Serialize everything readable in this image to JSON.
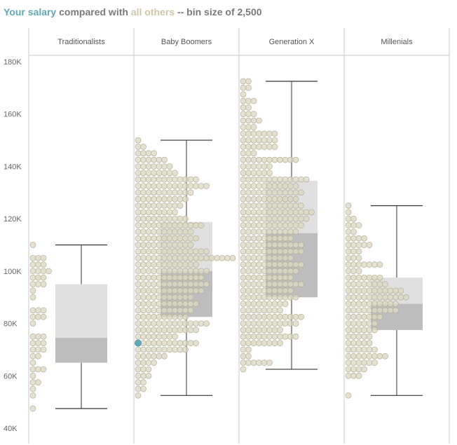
{
  "title": {
    "part1": "Your salary",
    "part2": " compared with ",
    "part3": "all others",
    "part4": " -- bin size of 2,500"
  },
  "colors": {
    "you": "#5fa8b8",
    "others": "#cfc6a8",
    "dot_fill": "#dcd8c4",
    "dot_stroke": "#b3ae97",
    "box_upper": "#e0e0e0",
    "box_lower": "#bdbdbd",
    "whisker": "#333333",
    "grid": "#c8c8c8"
  },
  "chart_data": {
    "type": "boxplot with binned dot strips",
    "bin_size": 2500,
    "y_axis": {
      "ticks": [
        40000,
        60000,
        80000,
        100000,
        120000,
        140000,
        160000,
        180000
      ],
      "tick_labels": [
        "40K",
        "60K",
        "80K",
        "100K",
        "120K",
        "140K",
        "160K",
        "180K"
      ],
      "ylim": [
        40000,
        180000
      ]
    },
    "your_salary": 72500,
    "your_group": "Baby Boomers",
    "groups": [
      {
        "name": "Traditionalists",
        "box": {
          "min": 47500,
          "q1": 65000,
          "median": 74500,
          "q3": 95000,
          "max": 110000
        },
        "bins": [
          {
            "salary": 47500,
            "count": 1
          },
          {
            "salary": 52500,
            "count": 1
          },
          {
            "salary": 55000,
            "count": 1
          },
          {
            "salary": 57500,
            "count": 2
          },
          {
            "salary": 60000,
            "count": 1
          },
          {
            "salary": 62500,
            "count": 3
          },
          {
            "salary": 65000,
            "count": 1
          },
          {
            "salary": 67500,
            "count": 2
          },
          {
            "salary": 70000,
            "count": 3
          },
          {
            "salary": 72500,
            "count": 3
          },
          {
            "salary": 75000,
            "count": 3
          },
          {
            "salary": 80000,
            "count": 1
          },
          {
            "salary": 82500,
            "count": 3
          },
          {
            "salary": 85000,
            "count": 3
          },
          {
            "salary": 90000,
            "count": 1
          },
          {
            "salary": 92500,
            "count": 1
          },
          {
            "salary": 95000,
            "count": 3
          },
          {
            "salary": 97500,
            "count": 3
          },
          {
            "salary": 100000,
            "count": 4
          },
          {
            "salary": 102500,
            "count": 3
          },
          {
            "salary": 105000,
            "count": 3
          },
          {
            "salary": 110000,
            "count": 1
          }
        ]
      },
      {
        "name": "Baby Boomers",
        "box": {
          "min": 52500,
          "q1": 82500,
          "median": 100000,
          "q3": 118750,
          "max": 150000
        },
        "bins": [
          {
            "salary": 52500,
            "count": 1
          },
          {
            "salary": 55000,
            "count": 2
          },
          {
            "salary": 57500,
            "count": 2
          },
          {
            "salary": 60000,
            "count": 3
          },
          {
            "salary": 62500,
            "count": 3
          },
          {
            "salary": 65000,
            "count": 4
          },
          {
            "salary": 67500,
            "count": 6
          },
          {
            "salary": 70000,
            "count": 10
          },
          {
            "salary": 72500,
            "count": 12
          },
          {
            "salary": 75000,
            "count": 8
          },
          {
            "salary": 77500,
            "count": 12
          },
          {
            "salary": 80000,
            "count": 14
          },
          {
            "salary": 82500,
            "count": 10
          },
          {
            "salary": 85000,
            "count": 11
          },
          {
            "salary": 87500,
            "count": 12
          },
          {
            "salary": 90000,
            "count": 11
          },
          {
            "salary": 92500,
            "count": 13
          },
          {
            "salary": 95000,
            "count": 14
          },
          {
            "salary": 97500,
            "count": 13
          },
          {
            "salary": 100000,
            "count": 14
          },
          {
            "salary": 102500,
            "count": 12
          },
          {
            "salary": 105000,
            "count": 19
          },
          {
            "salary": 107500,
            "count": 14
          },
          {
            "salary": 110000,
            "count": 11
          },
          {
            "salary": 112500,
            "count": 12
          },
          {
            "salary": 115000,
            "count": 11
          },
          {
            "salary": 117500,
            "count": 13
          },
          {
            "salary": 120000,
            "count": 10
          },
          {
            "salary": 122500,
            "count": 8
          },
          {
            "salary": 125000,
            "count": 9
          },
          {
            "salary": 127500,
            "count": 10
          },
          {
            "salary": 130000,
            "count": 11
          },
          {
            "salary": 132500,
            "count": 14
          },
          {
            "salary": 135000,
            "count": 12
          },
          {
            "salary": 137500,
            "count": 8
          },
          {
            "salary": 140000,
            "count": 7
          },
          {
            "salary": 142500,
            "count": 6
          },
          {
            "salary": 145000,
            "count": 4
          },
          {
            "salary": 147500,
            "count": 2
          },
          {
            "salary": 150000,
            "count": 1
          }
        ]
      },
      {
        "name": "Generation X",
        "box": {
          "min": 62500,
          "q1": 90000,
          "median": 114500,
          "q3": 134500,
          "max": 172500
        },
        "bins": [
          {
            "salary": 62500,
            "count": 1
          },
          {
            "salary": 65000,
            "count": 6
          },
          {
            "salary": 67500,
            "count": 2
          },
          {
            "salary": 70000,
            "count": 2
          },
          {
            "salary": 72500,
            "count": 8
          },
          {
            "salary": 75000,
            "count": 11
          },
          {
            "salary": 77500,
            "count": 8
          },
          {
            "salary": 80000,
            "count": 11
          },
          {
            "salary": 82500,
            "count": 12
          },
          {
            "salary": 85000,
            "count": 8
          },
          {
            "salary": 87500,
            "count": 9
          },
          {
            "salary": 90000,
            "count": 11
          },
          {
            "salary": 92500,
            "count": 10
          },
          {
            "salary": 95000,
            "count": 12
          },
          {
            "salary": 97500,
            "count": 10
          },
          {
            "salary": 100000,
            "count": 11
          },
          {
            "salary": 102500,
            "count": 12
          },
          {
            "salary": 105000,
            "count": 10
          },
          {
            "salary": 107500,
            "count": 12
          },
          {
            "salary": 110000,
            "count": 12
          },
          {
            "salary": 112500,
            "count": 10
          },
          {
            "salary": 115000,
            "count": 11
          },
          {
            "salary": 117500,
            "count": 12
          },
          {
            "salary": 120000,
            "count": 13
          },
          {
            "salary": 122500,
            "count": 14
          },
          {
            "salary": 125000,
            "count": 12
          },
          {
            "salary": 127500,
            "count": 11
          },
          {
            "salary": 130000,
            "count": 12
          },
          {
            "salary": 132500,
            "count": 11
          },
          {
            "salary": 135000,
            "count": 13
          },
          {
            "salary": 137500,
            "count": 6
          },
          {
            "salary": 140000,
            "count": 6
          },
          {
            "salary": 142500,
            "count": 11
          },
          {
            "salary": 145000,
            "count": 3
          },
          {
            "salary": 147500,
            "count": 7
          },
          {
            "salary": 150000,
            "count": 7
          },
          {
            "salary": 152500,
            "count": 7
          },
          {
            "salary": 155000,
            "count": 3
          },
          {
            "salary": 157500,
            "count": 4
          },
          {
            "salary": 160000,
            "count": 3
          },
          {
            "salary": 162500,
            "count": 2
          },
          {
            "salary": 165000,
            "count": 3
          },
          {
            "salary": 167500,
            "count": 1
          },
          {
            "salary": 170000,
            "count": 2
          },
          {
            "salary": 172500,
            "count": 2
          }
        ]
      },
      {
        "name": "Millenials",
        "box": {
          "min": 52500,
          "q1": 77500,
          "median": 87500,
          "q3": 97500,
          "max": 125000
        },
        "bins": [
          {
            "salary": 52500,
            "count": 1
          },
          {
            "salary": 60000,
            "count": 3
          },
          {
            "salary": 62500,
            "count": 4
          },
          {
            "salary": 65000,
            "count": 6
          },
          {
            "salary": 67500,
            "count": 8
          },
          {
            "salary": 70000,
            "count": 6
          },
          {
            "salary": 72500,
            "count": 5
          },
          {
            "salary": 75000,
            "count": 5
          },
          {
            "salary": 77500,
            "count": 6
          },
          {
            "salary": 80000,
            "count": 6
          },
          {
            "salary": 82500,
            "count": 7
          },
          {
            "salary": 85000,
            "count": 10
          },
          {
            "salary": 87500,
            "count": 10
          },
          {
            "salary": 90000,
            "count": 12
          },
          {
            "salary": 92500,
            "count": 11
          },
          {
            "salary": 95000,
            "count": 8
          },
          {
            "salary": 97500,
            "count": 7
          },
          {
            "salary": 100000,
            "count": 3
          },
          {
            "salary": 102500,
            "count": 7
          },
          {
            "salary": 105000,
            "count": 3
          },
          {
            "salary": 107500,
            "count": 3
          },
          {
            "salary": 110000,
            "count": 5
          },
          {
            "salary": 112500,
            "count": 4
          },
          {
            "salary": 115000,
            "count": 2
          },
          {
            "salary": 117500,
            "count": 3
          },
          {
            "salary": 120000,
            "count": 2
          },
          {
            "salary": 122500,
            "count": 1
          },
          {
            "salary": 125000,
            "count": 1
          }
        ]
      }
    ]
  }
}
